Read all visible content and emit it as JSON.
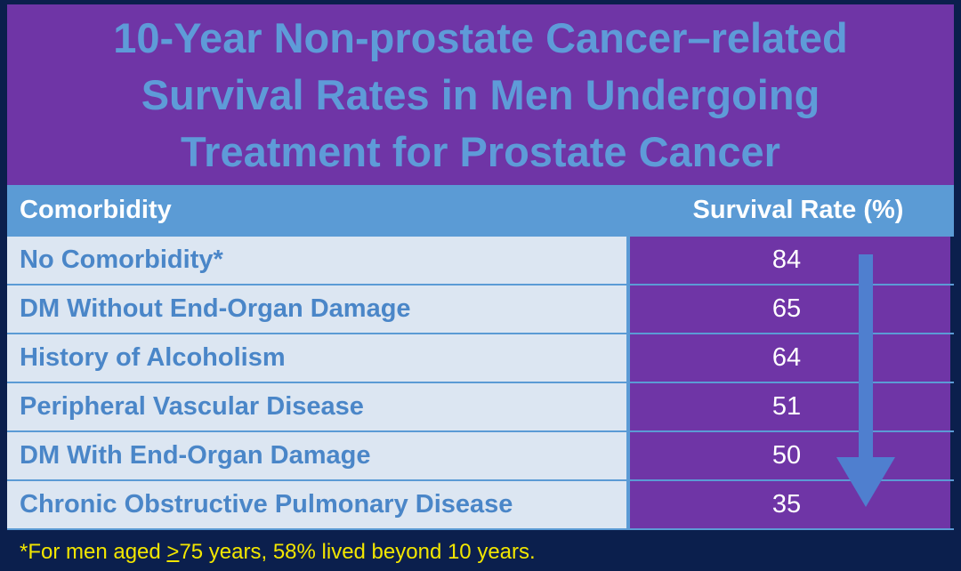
{
  "title": "10-Year Non-prostate Cancer–related Survival Rates in Men Undergoing Treatment for Prostate Cancer",
  "table": {
    "headers": {
      "comorbidity": "Comorbidity",
      "survival": "Survival Rate (%)"
    },
    "rows": [
      {
        "label": "No Comorbidity*",
        "value": "84"
      },
      {
        "label": "DM Without End-Organ Damage",
        "value": "65"
      },
      {
        "label": "History of Alcoholism",
        "value": "64"
      },
      {
        "label": "Peripheral Vascular Disease",
        "value": "51"
      },
      {
        "label": "DM With End-Organ Damage",
        "value": "50"
      },
      {
        "label": "Chronic Obstructive Pulmonary Disease",
        "value": "35"
      }
    ]
  },
  "footnote": {
    "prefix": "*For men aged ",
    "symbol": ">",
    "suffix": "75 years, 58% lived beyond 10 years."
  },
  "colors": {
    "background": "#0b1f4d",
    "title_bg": "#6f35a6",
    "title_text": "#5e9bd8",
    "header_bg": "#5b9bd5",
    "left_cell_bg": "#dce6f2",
    "footnote_text": "#f2e600"
  },
  "icons": {
    "trend": "down-arrow-icon"
  }
}
